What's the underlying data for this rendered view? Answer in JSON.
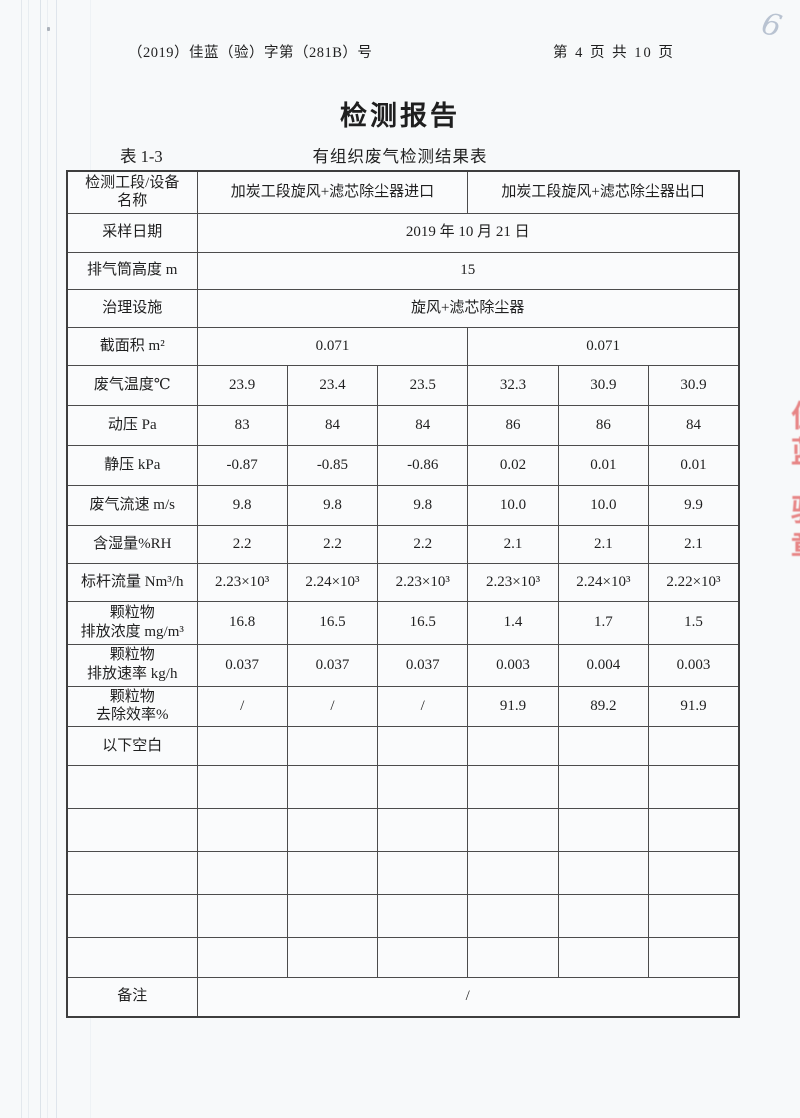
{
  "page": {
    "doc_number": "（2019）佳蓝（验）字第（281B）号",
    "page_info": "第 4 页 共 10 页",
    "handwritten_page_number": "6",
    "title": "检测报告",
    "table_label": "表 1-3",
    "table_caption": "有组织废气检测结果表",
    "stamp_fragment_1": "佳蓝",
    "stamp_fragment_2": "验章"
  },
  "table": {
    "rows": [
      {
        "label": "检测工段/设备\n名称",
        "span": "half",
        "cells": [
          "加炭工段旋风+滤芯除尘器进口",
          "加炭工段旋风+滤芯除尘器出口"
        ]
      },
      {
        "label": "采样日期",
        "span": "full",
        "cells": [
          "2019 年 10 月 21 日"
        ]
      },
      {
        "label": "排气筒高度 m",
        "span": "full",
        "cells": [
          "15"
        ]
      },
      {
        "label": "治理设施",
        "span": "full",
        "cells": [
          "旋风+滤芯除尘器"
        ]
      },
      {
        "label": "截面积 m²",
        "span": "half",
        "cells": [
          "0.071",
          "0.071"
        ]
      },
      {
        "label": "废气温度℃",
        "span": "none",
        "cells": [
          "23.9",
          "23.4",
          "23.5",
          "32.3",
          "30.9",
          "30.9"
        ]
      },
      {
        "label": "动压 Pa",
        "span": "none",
        "cells": [
          "83",
          "84",
          "84",
          "86",
          "86",
          "84"
        ]
      },
      {
        "label": "静压 kPa",
        "span": "none",
        "cells": [
          "-0.87",
          "-0.85",
          "-0.86",
          "0.02",
          "0.01",
          "0.01"
        ]
      },
      {
        "label": "废气流速 m/s",
        "span": "none",
        "cells": [
          "9.8",
          "9.8",
          "9.8",
          "10.0",
          "10.0",
          "9.9"
        ]
      },
      {
        "label": "含湿量%RH",
        "span": "none",
        "cells": [
          "2.2",
          "2.2",
          "2.2",
          "2.1",
          "2.1",
          "2.1"
        ]
      },
      {
        "label": "标杆流量 Nm³/h",
        "span": "none",
        "cells": [
          "2.23×10³",
          "2.24×10³",
          "2.23×10³",
          "2.23×10³",
          "2.24×10³",
          "2.22×10³"
        ]
      },
      {
        "label": "颗粒物\n排放浓度 mg/m³",
        "span": "none",
        "cells": [
          "16.8",
          "16.5",
          "16.5",
          "1.4",
          "1.7",
          "1.5"
        ]
      },
      {
        "label": "颗粒物\n排放速率 kg/h",
        "span": "none",
        "cells": [
          "0.037",
          "0.037",
          "0.037",
          "0.003",
          "0.004",
          "0.003"
        ]
      },
      {
        "label": "颗粒物\n去除效率%",
        "span": "none",
        "cells": [
          "/",
          "/",
          "/",
          "91.9",
          "89.2",
          "91.9"
        ]
      },
      {
        "label": "以下空白",
        "span": "none",
        "cells": [
          "",
          "",
          "",
          "",
          "",
          ""
        ]
      },
      {
        "label": "",
        "span": "none",
        "cells": [
          "",
          "",
          "",
          "",
          "",
          ""
        ]
      },
      {
        "label": "",
        "span": "none",
        "cells": [
          "",
          "",
          "",
          "",
          "",
          ""
        ]
      },
      {
        "label": "",
        "span": "none",
        "cells": [
          "",
          "",
          "",
          "",
          "",
          ""
        ]
      },
      {
        "label": "",
        "span": "none",
        "cells": [
          "",
          "",
          "",
          "",
          "",
          ""
        ]
      },
      {
        "label": "",
        "span": "none",
        "cells": [
          "",
          "",
          "",
          "",
          "",
          ""
        ]
      },
      {
        "label": "备注",
        "span": "full",
        "cells": [
          "/"
        ]
      }
    ]
  }
}
